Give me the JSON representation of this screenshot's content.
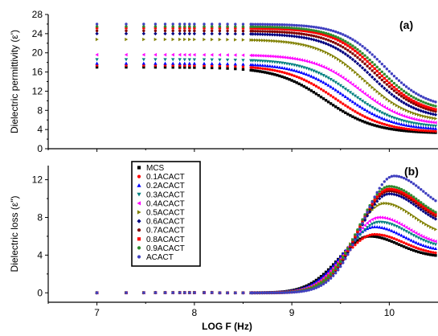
{
  "chart_data": [
    {
      "type": "scatter",
      "panel_label": "(a)",
      "ylabel": "Dielectric permittivity (ε')",
      "xlim": [
        6.5,
        10.5
      ],
      "ylim": [
        0,
        28
      ],
      "yticks": [
        0,
        4,
        8,
        12,
        16,
        20,
        24,
        28
      ],
      "legend": "none",
      "series": [
        {
          "name": "MCS",
          "color": "#000000",
          "marker": "square",
          "plateau": 17.0,
          "fc": 9.35,
          "rolloff": 0.72,
          "end": 3.2
        },
        {
          "name": "0.1ACACT",
          "color": "#ff0000",
          "marker": "circle",
          "plateau": 17.4,
          "fc": 9.45,
          "rolloff": 0.72,
          "end": 3.4
        },
        {
          "name": "0.2ACACT",
          "color": "#0000ff",
          "marker": "triangle-up",
          "plateau": 17.8,
          "fc": 9.55,
          "rolloff": 0.7,
          "end": 3.9
        },
        {
          "name": "0.3ACACT",
          "color": "#008080",
          "marker": "triangle-down",
          "plateau": 18.6,
          "fc": 9.62,
          "rolloff": 0.7,
          "end": 4.3
        },
        {
          "name": "0.4ACACT",
          "color": "#ff00ff",
          "marker": "triangle-left",
          "plateau": 19.6,
          "fc": 9.7,
          "rolloff": 0.68,
          "end": 4.9
        },
        {
          "name": "0.5ACACT",
          "color": "#808000",
          "marker": "triangle-right",
          "plateau": 22.8,
          "fc": 9.75,
          "rolloff": 0.68,
          "end": 5.5
        },
        {
          "name": "0.6ACACT",
          "color": "#000080",
          "marker": "diamond",
          "plateau": 24.0,
          "fc": 9.82,
          "rolloff": 0.66,
          "end": 6.1
        },
        {
          "name": "0.7ACACT",
          "color": "#800000",
          "marker": "circle",
          "plateau": 24.6,
          "fc": 9.86,
          "rolloff": 0.66,
          "end": 6.6
        },
        {
          "name": "0.8ACACT",
          "color": "#ff0000",
          "marker": "square",
          "plateau": 25.2,
          "fc": 9.88,
          "rolloff": 0.64,
          "end": 7.0
        },
        {
          "name": "0.9ACACT",
          "color": "#2e8b2e",
          "marker": "circle",
          "plateau": 25.5,
          "fc": 9.9,
          "rolloff": 0.64,
          "end": 7.6
        },
        {
          "name": "ACACT",
          "color": "#4040c0",
          "marker": "circle",
          "plateau": 26.0,
          "fc": 9.95,
          "rolloff": 0.62,
          "end": 8.3
        }
      ]
    },
    {
      "type": "scatter",
      "panel_label": "(b)",
      "xlabel": "LOG F (Hz)",
      "ylabel": "Dielectric loss (ε\")",
      "xlim": [
        6.5,
        10.5
      ],
      "ylim": [
        -1,
        13.5
      ],
      "yticks": [
        0,
        4,
        8,
        12
      ],
      "xticks": [
        7,
        8,
        9,
        10
      ],
      "legend": "top-left",
      "series": [
        {
          "name": "MCS",
          "color": "#000000",
          "marker": "square",
          "peak": 6.0,
          "peak_x": 9.8,
          "width": 0.45,
          "end": 3.8
        },
        {
          "name": "0.1ACACT",
          "color": "#ff0000",
          "marker": "circle",
          "peak": 6.2,
          "peak_x": 9.85,
          "width": 0.45,
          "end": 4.0
        },
        {
          "name": "0.2ACACT",
          "color": "#0000ff",
          "marker": "triangle-up",
          "peak": 7.0,
          "peak_x": 9.85,
          "width": 0.45,
          "end": 4.4
        },
        {
          "name": "0.3ACACT",
          "color": "#008080",
          "marker": "triangle-down",
          "peak": 7.5,
          "peak_x": 9.9,
          "width": 0.45,
          "end": 4.7
        },
        {
          "name": "0.4ACACT",
          "color": "#ff00ff",
          "marker": "triangle-left",
          "peak": 8.0,
          "peak_x": 9.9,
          "width": 0.45,
          "end": 5.0
        },
        {
          "name": "0.5ACACT",
          "color": "#808000",
          "marker": "triangle-right",
          "peak": 9.5,
          "peak_x": 9.95,
          "width": 0.45,
          "end": 6.0
        },
        {
          "name": "0.6ACACT",
          "color": "#000080",
          "marker": "diamond",
          "peak": 10.5,
          "peak_x": 10.0,
          "width": 0.45,
          "end": 6.8
        },
        {
          "name": "0.7ACACT",
          "color": "#800000",
          "marker": "circle",
          "peak": 10.8,
          "peak_x": 10.0,
          "width": 0.45,
          "end": 7.1
        },
        {
          "name": "0.8ACACT",
          "color": "#ff0000",
          "marker": "square",
          "peak": 11.0,
          "peak_x": 10.0,
          "width": 0.45,
          "end": 7.3
        },
        {
          "name": "0.9ACACT",
          "color": "#2e8b2e",
          "marker": "circle",
          "peak": 11.3,
          "peak_x": 10.0,
          "width": 0.45,
          "end": 7.5
        },
        {
          "name": "ACACT",
          "color": "#4040c0",
          "marker": "circle",
          "peak": 12.4,
          "peak_x": 10.05,
          "width": 0.45,
          "end": 8.3
        }
      ]
    }
  ]
}
